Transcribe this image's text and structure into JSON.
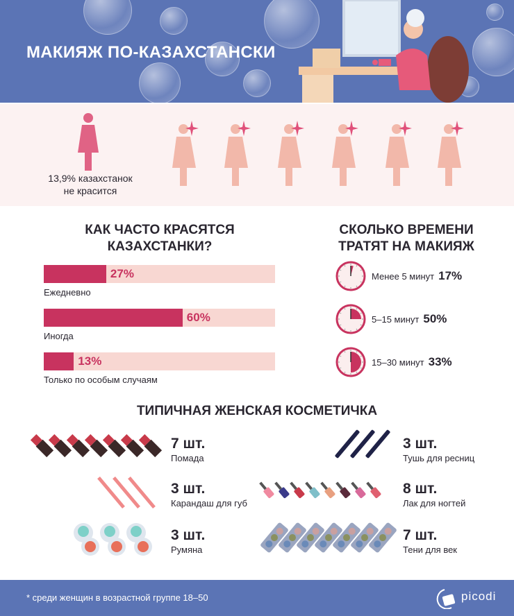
{
  "header": {
    "title": "МАКИЯЖ ПО-КАЗАХСТАНСКИ"
  },
  "women": {
    "not_painting_text_1": "13,9% казахстанок",
    "not_painting_text_2": "не красится",
    "not_painting_percent": 13.9
  },
  "frequency": {
    "title_1": "КАК ЧАСТО КРАСЯТСЯ",
    "title_2": "КАЗАХСТАНКИ?",
    "items": [
      {
        "label": "Ежедневно",
        "pct": "27%",
        "value": 27
      },
      {
        "label": "Иногда",
        "pct": "60%",
        "value": 60
      },
      {
        "label": "Только по особым случаям",
        "pct": "13%",
        "value": 13
      }
    ]
  },
  "time": {
    "title_1": "СКОЛЬКО ВРЕМЕНИ",
    "title_2": "ТРАТЯТ НА МАКИЯЖ",
    "items": [
      {
        "label": "Менее 5 минут",
        "pct": "17%"
      },
      {
        "label": "5–15 минут",
        "pct": "50%"
      },
      {
        "label": "15–30 минут",
        "pct": "33%"
      }
    ]
  },
  "cosmetics": {
    "title": "ТИПИЧНАЯ ЖЕНСКАЯ КОСМЕТИЧКА",
    "items": [
      {
        "count": "7 шт.",
        "label": "Помада",
        "icon": "lipstick-icon"
      },
      {
        "count": "3 шт.",
        "label": "Тушь для ресниц",
        "icon": "mascara-icon"
      },
      {
        "count": "3 шт.",
        "label": "Карандаш для губ",
        "icon": "lip-pencil-icon"
      },
      {
        "count": "8 шт.",
        "label": "Лак для ногтей",
        "icon": "nail-polish-icon"
      },
      {
        "count": "3 шт.",
        "label": "Румяна",
        "icon": "blush-icon"
      },
      {
        "count": "7 шт.",
        "label": "Тени для век",
        "icon": "eyeshadow-icon"
      }
    ]
  },
  "footer": {
    "note": "* среди женщин в возрастной группе 18–50",
    "logo": "picodi"
  },
  "colors": {
    "blue": "#5b74b5",
    "accent": "#c8335f",
    "light_pink": "#f8d7d2"
  },
  "chart_data": [
    {
      "type": "bar",
      "title": "КАК ЧАСТО КРАСЯТСЯ КАЗАХСТАНКИ?",
      "categories": [
        "Ежедневно",
        "Иногда",
        "Только по особым случаям"
      ],
      "values": [
        27,
        60,
        13
      ],
      "ylim": [
        0,
        100
      ]
    },
    {
      "type": "pie",
      "title": "СКОЛЬКО ВРЕМЕНИ ТРАТЯТ НА МАКИЯЖ",
      "categories": [
        "Менее 5 минут",
        "5–15 минут",
        "15–30 минут"
      ],
      "values": [
        17,
        50,
        33
      ]
    }
  ]
}
